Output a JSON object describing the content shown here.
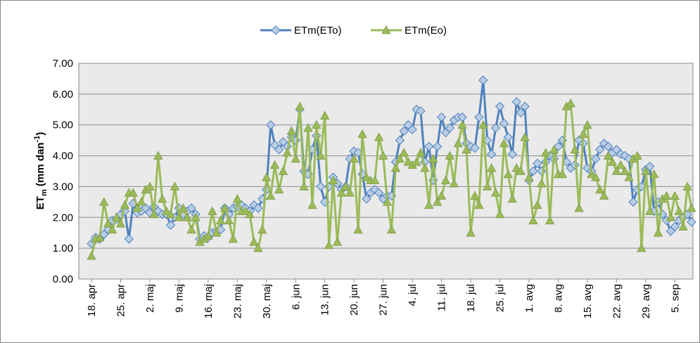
{
  "chart_data": {
    "type": "line",
    "y_label": {
      "base": "ET",
      "subscript": "m",
      "unit": " (mm dan",
      "superscript": "-1",
      "close": ")"
    },
    "categories": [
      "18. apr",
      null,
      null,
      null,
      null,
      null,
      null,
      "25. apr",
      null,
      null,
      null,
      null,
      null,
      null,
      "2. maj",
      null,
      null,
      null,
      null,
      null,
      null,
      "9. maj",
      null,
      null,
      null,
      null,
      null,
      null,
      "16. maj",
      null,
      null,
      null,
      null,
      null,
      null,
      "23. maj",
      null,
      null,
      null,
      null,
      null,
      null,
      "30. maj",
      null,
      null,
      null,
      null,
      null,
      null,
      "6. jun",
      null,
      null,
      null,
      null,
      null,
      null,
      "13. jun",
      null,
      null,
      null,
      null,
      null,
      null,
      "20. jun",
      null,
      null,
      null,
      null,
      null,
      null,
      "27. jun",
      null,
      null,
      null,
      null,
      null,
      null,
      "4. jul",
      null,
      null,
      null,
      null,
      null,
      null,
      "11. jul",
      null,
      null,
      null,
      null,
      null,
      null,
      "18. jul",
      null,
      null,
      null,
      null,
      null,
      null,
      "25. jul",
      null,
      null,
      null,
      null,
      null,
      null,
      "1. avg",
      null,
      null,
      null,
      null,
      null,
      null,
      "8. avg",
      null,
      null,
      null,
      null,
      null,
      null,
      "15. avg",
      null,
      null,
      null,
      null,
      null,
      null,
      "22. avg",
      null,
      null,
      null,
      null,
      null,
      null,
      "29. avg",
      null,
      null,
      null,
      null,
      null,
      null,
      "5. sep",
      null,
      null,
      null,
      null
    ],
    "series": [
      {
        "name": "ETm(ETo)",
        "color": "#4f81bd",
        "marker": "diamond",
        "marker_fill": "#b9cde5",
        "values": [
          1.15,
          1.35,
          1.3,
          1.45,
          1.6,
          1.9,
          1.95,
          2.1,
          2.2,
          1.3,
          2.45,
          2.15,
          2.2,
          2.3,
          2.15,
          2.35,
          2.2,
          2.1,
          2.1,
          1.75,
          2.0,
          2.3,
          2.1,
          2.2,
          2.3,
          2.1,
          1.3,
          1.4,
          1.35,
          1.5,
          1.55,
          1.6,
          2.3,
          2.1,
          2.3,
          2.35,
          2.4,
          2.3,
          2.2,
          2.4,
          2.3,
          2.6,
          2.9,
          5.0,
          4.35,
          4.2,
          4.45,
          4.3,
          4.6,
          4.5,
          5.5,
          3.5,
          3.4,
          4.2,
          4.65,
          3.0,
          2.5,
          3.0,
          3.3,
          3.1,
          2.9,
          3.0,
          3.9,
          4.15,
          4.1,
          3.4,
          2.6,
          2.8,
          2.9,
          2.8,
          2.6,
          2.7,
          2.7,
          3.8,
          4.5,
          4.8,
          5.0,
          4.85,
          5.5,
          5.45,
          3.8,
          4.3,
          3.2,
          4.3,
          5.25,
          4.75,
          4.9,
          5.15,
          5.25,
          5.25,
          4.4,
          4.3,
          4.25,
          5.25,
          6.45,
          4.5,
          4.05,
          4.9,
          5.6,
          5.05,
          4.6,
          4.05,
          5.75,
          5.4,
          5.6,
          3.2,
          3.5,
          3.75,
          3.5,
          3.8,
          4.0,
          3.9,
          4.3,
          4.5,
          3.8,
          3.6,
          3.7,
          4.5,
          4.4,
          3.6,
          3.5,
          3.9,
          4.2,
          4.4,
          4.3,
          4.1,
          4.2,
          4.05,
          4.0,
          3.9,
          2.5,
          2.9,
          3.0,
          3.55,
          3.65,
          2.2,
          2.5,
          2.1,
          1.9,
          1.55,
          1.7,
          1.9,
          2.0,
          2.1,
          1.85
        ]
      },
      {
        "name": "ETm(Eo)",
        "color": "#9bbb59",
        "marker": "triangle",
        "marker_fill": "#9bbb59",
        "values": [
          0.75,
          1.3,
          1.35,
          2.5,
          1.8,
          1.6,
          2.0,
          1.8,
          2.4,
          2.8,
          2.8,
          2.3,
          2.5,
          2.9,
          3.0,
          2.1,
          4.0,
          2.6,
          2.2,
          2.1,
          3.0,
          2.0,
          2.3,
          2.0,
          1.6,
          2.0,
          1.2,
          1.3,
          1.4,
          2.2,
          1.5,
          1.9,
          2.3,
          1.9,
          1.3,
          2.6,
          2.2,
          2.2,
          2.1,
          1.2,
          1.0,
          1.6,
          3.3,
          2.7,
          3.7,
          2.9,
          3.5,
          4.1,
          4.8,
          3.9,
          5.6,
          3.0,
          4.9,
          2.4,
          5.0,
          4.0,
          5.3,
          1.1,
          3.2,
          1.2,
          2.8,
          3.0,
          2.8,
          3.9,
          1.6,
          4.7,
          3.3,
          3.2,
          3.2,
          4.6,
          4.0,
          2.5,
          1.6,
          3.6,
          3.9,
          4.1,
          3.8,
          3.7,
          3.8,
          4.1,
          3.6,
          2.4,
          3.9,
          2.5,
          2.7,
          3.2,
          4.0,
          3.1,
          4.4,
          5.0,
          4.2,
          1.5,
          2.7,
          2.4,
          5.0,
          3.0,
          3.6,
          2.8,
          2.1,
          4.4,
          3.4,
          2.6,
          3.6,
          3.5,
          4.6,
          3.3,
          1.9,
          2.4,
          3.1,
          4.1,
          1.9,
          4.2,
          3.4,
          3.4,
          5.6,
          5.7,
          4.2,
          2.3,
          4.7,
          5.0,
          3.4,
          3.3,
          2.9,
          2.7,
          4.0,
          3.8,
          3.5,
          3.7,
          3.5,
          3.3,
          3.9,
          4.0,
          1.0,
          3.5,
          2.2,
          3.4,
          1.5,
          2.6,
          2.7,
          2.0,
          2.7,
          2.2,
          1.7,
          3.0,
          2.3
        ]
      }
    ],
    "ylim": [
      0,
      7
    ],
    "yticks": [
      {
        "value": 0,
        "label": "0.00"
      },
      {
        "value": 1,
        "label": "1.00"
      },
      {
        "value": 2,
        "label": "2.00"
      },
      {
        "value": 3,
        "label": "3.00"
      },
      {
        "value": 4,
        "label": "4.00"
      },
      {
        "value": 5,
        "label": "5.00"
      },
      {
        "value": 6,
        "label": "6.00"
      },
      {
        "value": 7,
        "label": "7.00"
      }
    ],
    "grid": true,
    "legend": "top",
    "plot_background": "#eaeaea"
  }
}
